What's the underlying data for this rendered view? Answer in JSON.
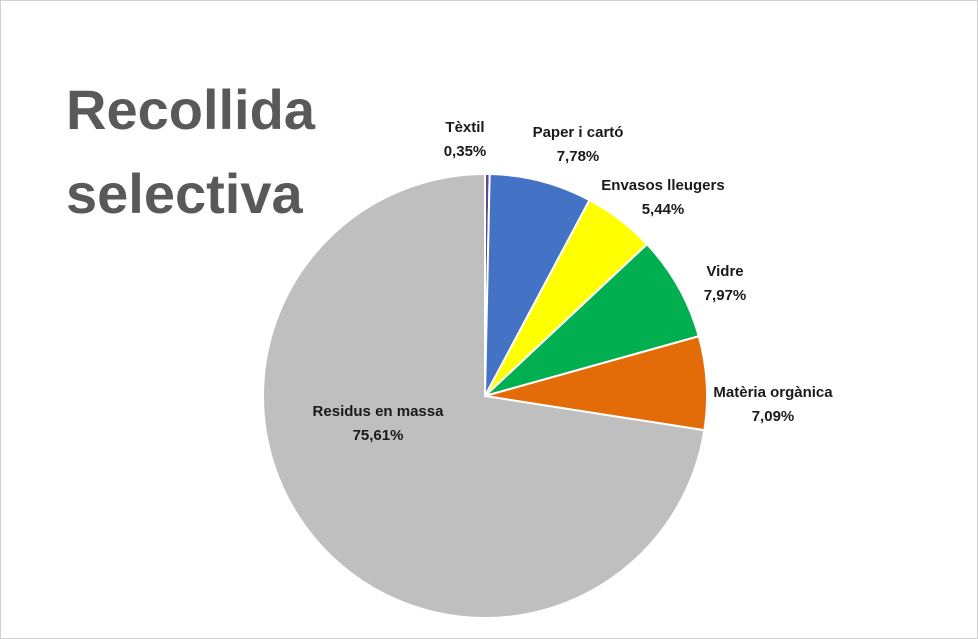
{
  "chart_data": {
    "type": "pie",
    "title": "Recollida selectiva",
    "categories": [
      "Tèxtil",
      "Paper i cartó",
      "Envasos lleugers",
      "Vidre",
      "Matèria orgànica",
      "Residus en massa"
    ],
    "values": [
      0.35,
      7.78,
      5.44,
      7.97,
      7.09,
      75.61
    ],
    "value_labels": [
      "0,35%",
      "7,78%",
      "5,44%",
      "7,97%",
      "7,09%",
      "75,61%"
    ],
    "colors": [
      "#5e4a8c",
      "#4472c4",
      "#ffff00",
      "#00b050",
      "#e36c09",
      "#bfbfbf"
    ]
  }
}
